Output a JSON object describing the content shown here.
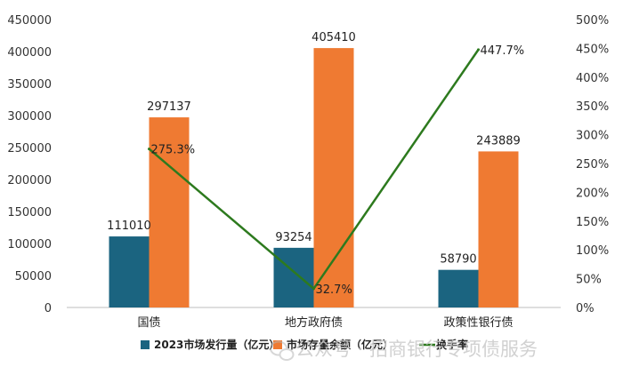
{
  "chart_data": {
    "type": "bar",
    "categories": [
      "国债",
      "地方政府债",
      "政策性银行债"
    ],
    "series": [
      {
        "name": "2023市场发行量（亿元）",
        "values": [
          111010,
          93254,
          58790
        ],
        "color": "#1b6480",
        "axis": "left",
        "kind": "bar"
      },
      {
        "name": "市场存量余额（亿元）",
        "values": [
          297137,
          405410,
          243889
        ],
        "color": "#ef7a32",
        "axis": "left",
        "kind": "bar"
      },
      {
        "name": "换手率",
        "values": [
          275.3,
          32.7,
          447.7
        ],
        "labels": [
          "275.3%",
          "32.7%",
          "447.7%"
        ],
        "color": "#2d7a1e",
        "axis": "right",
        "kind": "line"
      }
    ],
    "y_left": {
      "min": 0,
      "max": 450000,
      "step": 50000,
      "ticks": [
        "0",
        "50000",
        "100000",
        "150000",
        "200000",
        "250000",
        "300000",
        "350000",
        "400000",
        "450000"
      ]
    },
    "y_right": {
      "min": 0,
      "max": 500,
      "step": 50,
      "ticks": [
        "0%",
        "50%",
        "100%",
        "150%",
        "200%",
        "250%",
        "300%",
        "350%",
        "400%",
        "450%",
        "500%"
      ]
    },
    "grid": false,
    "legend_position": "bottom"
  },
  "watermark": {
    "text": "公众号 · 招商银行专项债服务",
    "icon": "wechat-icon"
  }
}
